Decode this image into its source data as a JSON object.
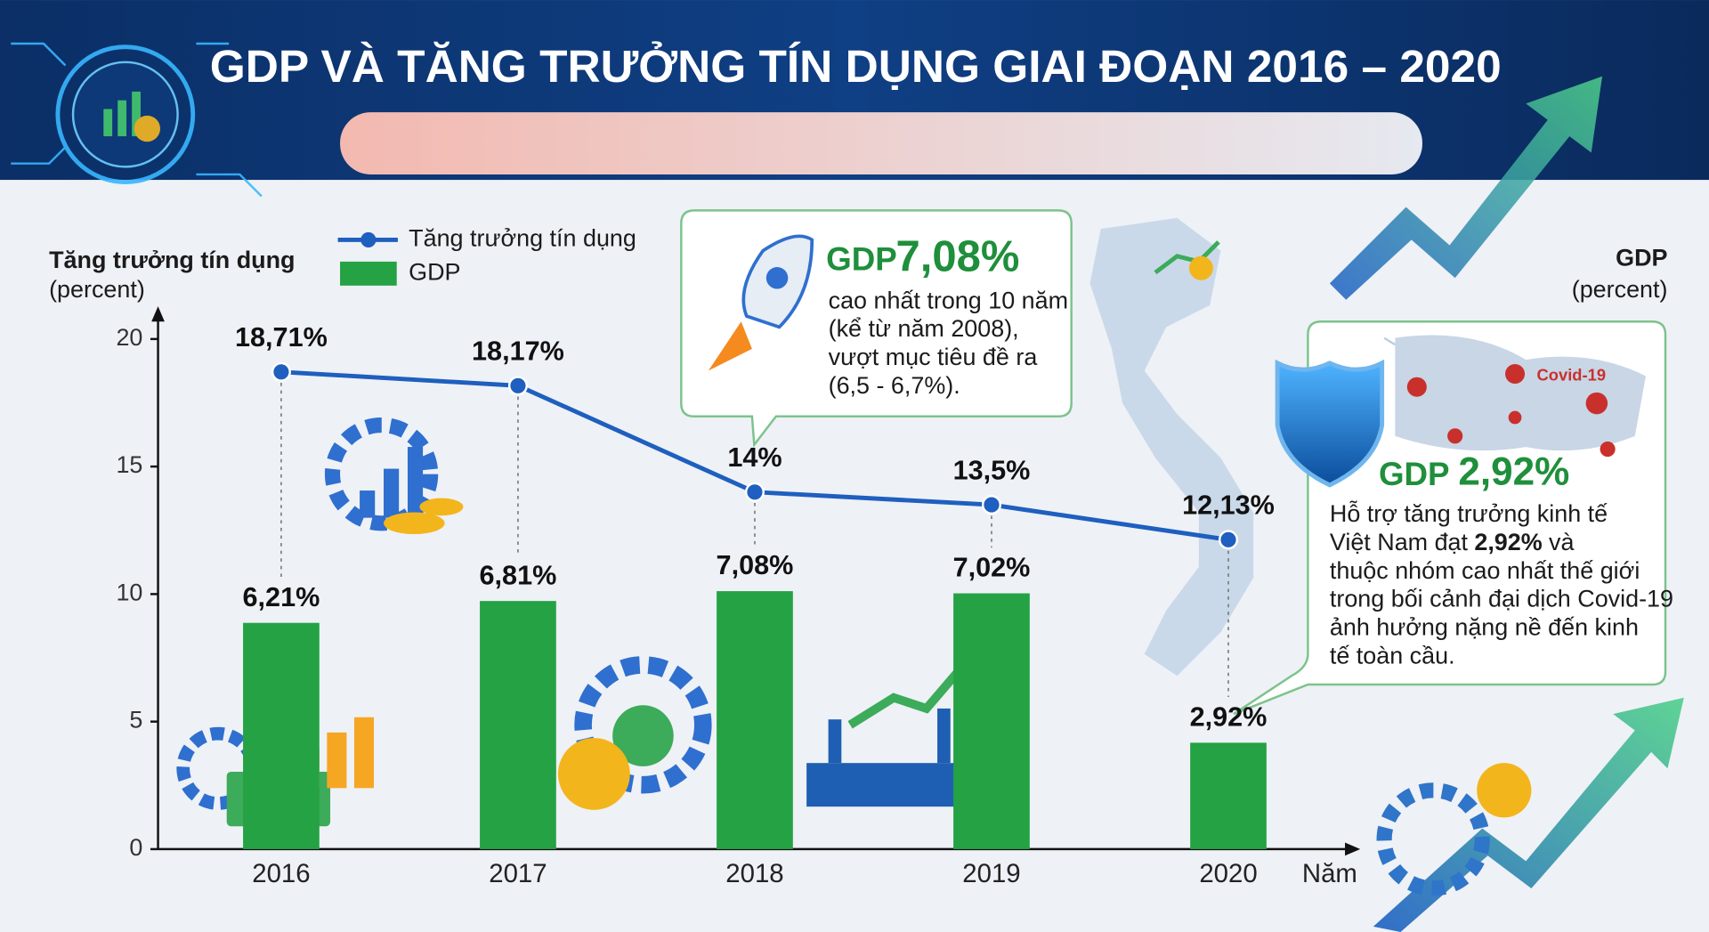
{
  "chart_data": {
    "type": "combo",
    "title": "GDP VÀ TĂNG TRƯỞNG TÍN DỤNG GIAI ĐOẠN 2016 – 2020",
    "y_label": "Tăng trưởng tín dụng",
    "y_unit": "(percent)",
    "y2_label": "GDP",
    "y2_unit": "(percent)",
    "x_label": "Năm",
    "categories": [
      "2016",
      "2017",
      "2018",
      "2019",
      "2020"
    ],
    "ylim": [
      0,
      20
    ],
    "yticks": [
      0,
      5,
      10,
      15,
      20
    ],
    "y2lim": [
      0,
      14
    ],
    "legend": "top-left",
    "series": [
      {
        "name": "Tăng trưởng tín dụng",
        "type": "line",
        "color": "#1e5fbf",
        "values": [
          18.71,
          18.17,
          14,
          13.5,
          12.13
        ],
        "value_labels": [
          "18,71%",
          "18,17%",
          "14%",
          "13,5%",
          "12,13%"
        ]
      },
      {
        "name": "GDP",
        "type": "bar",
        "axis": "y2",
        "color": "#25a244",
        "values": [
          6.21,
          6.81,
          7.08,
          7.02,
          2.92
        ],
        "value_labels": [
          "6,21%",
          "6,81%",
          "7,08%",
          "7,02%",
          "2,92%"
        ]
      }
    ],
    "annotations": [
      {
        "title": "GDP",
        "value": "7,08%",
        "lines": [
          "cao nhất trong 10 năm",
          "(kể từ năm 2008),",
          "vượt mục tiêu đề ra",
          "(6,5 - 6,7%)."
        ]
      },
      {
        "title": "GDP",
        "value": "2,92%",
        "badge": "Covid-19",
        "lines": [
          [
            "Hỗ trợ tăng trưởng kinh tế"
          ],
          [
            "Việt Nam đạt",
            "2,92%",
            "và"
          ],
          [
            "thuộc nhóm cao nhất thế giới"
          ],
          [
            "trong bối cảnh đại dịch Covid-19"
          ],
          [
            "ảnh hưởng nặng nề đến kinh"
          ],
          [
            "tế toàn cầu."
          ]
        ]
      }
    ]
  }
}
